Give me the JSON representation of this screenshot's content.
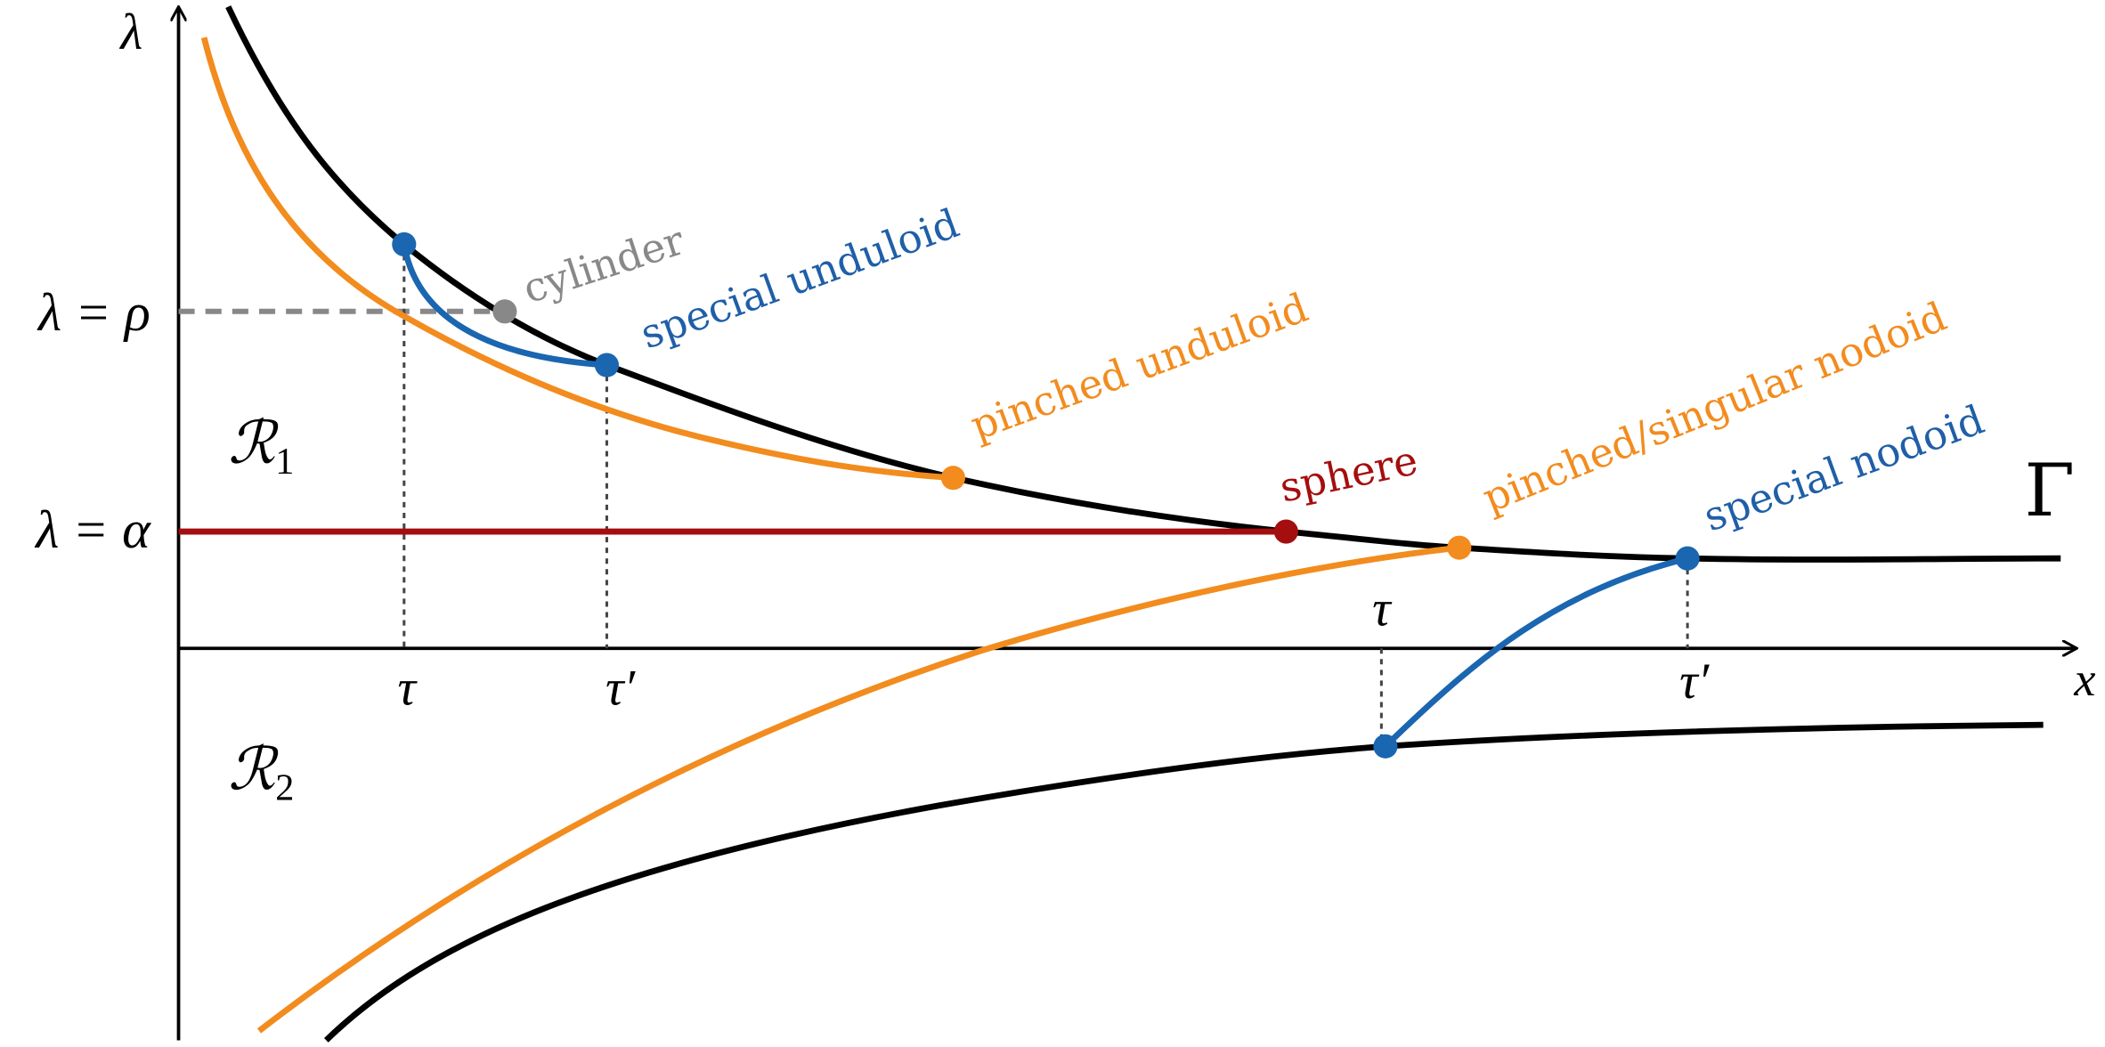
{
  "axes": {
    "y_label": "λ",
    "x_label": "x"
  },
  "levels": {
    "rho": "λ = ρ",
    "alpha": "λ = α"
  },
  "regions": [
    {
      "symbol": "ℛ",
      "subscript": "1"
    },
    {
      "symbol": "ℛ",
      "subscript": "2"
    }
  ],
  "ticks": [
    "τ",
    "τ′",
    "τ",
    "τ′"
  ],
  "curve_labels": {
    "cylinder": "cylinder",
    "special_unduloid": "special unduloid",
    "pinched_unduloid": "pinched unduloid",
    "sphere": "sphere",
    "pinched_singular_nodoid": "pinched/singular nodoid",
    "special_nodoid": "special nodoid",
    "gamma": "Γ"
  }
}
